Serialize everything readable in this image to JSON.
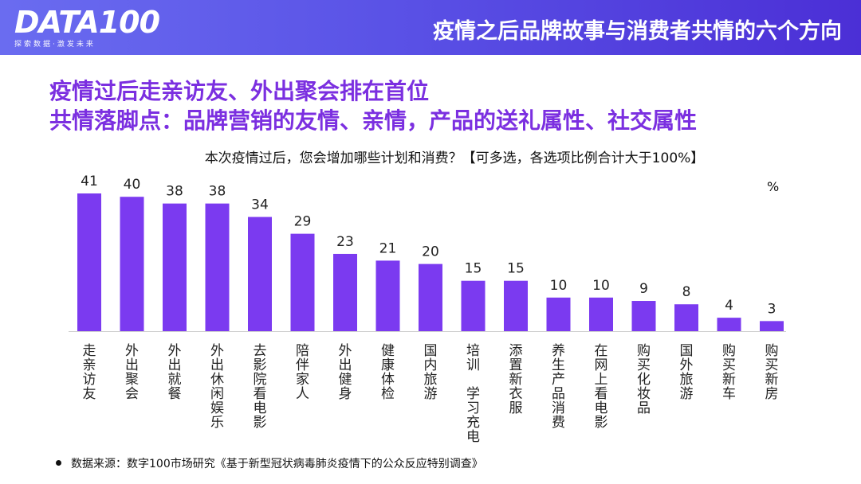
{
  "header": {
    "logo_text": "DATA100",
    "logo_sub": "探索数据·激发未来",
    "title": "疫情之后品牌故事与消费者共情的六个方向"
  },
  "headline": {
    "line1": "疫情过后走亲访友、外出聚会排在首位",
    "line2": "共情落脚点：品牌营销的友情、亲情，产品的送礼属性、社交属性"
  },
  "colors": {
    "bar": "#7b3af0",
    "headline": "#7b2fe0",
    "header_start": "#6a6cf0",
    "header_end": "#4b2fd6"
  },
  "chart_data": {
    "type": "bar",
    "title": "本次疫情过后，您会增加哪些计划和消费？【可多选，各选项比例合计大于100%】",
    "unit": "%",
    "categories": [
      "走亲访友",
      "外出聚会",
      "外出就餐",
      "外出休闲娱乐",
      "去影院看电影",
      "陪伴家人",
      "外出健身",
      "健康体检",
      "国内旅游",
      "培训 学习充电",
      "添置新衣服",
      "养生产品消费",
      "在网上看电影",
      "购买化妆品",
      "国外旅游",
      "购买新车",
      "购买新房"
    ],
    "values": [
      41,
      40,
      38,
      38,
      34,
      29,
      23,
      21,
      20,
      15,
      15,
      10,
      10,
      9,
      8,
      4,
      3
    ],
    "ylim": [
      0,
      41
    ]
  },
  "footnote": "数据来源：数字100市场研究《基于新型冠状病毒肺炎疫情下的公众反应特别调查》"
}
